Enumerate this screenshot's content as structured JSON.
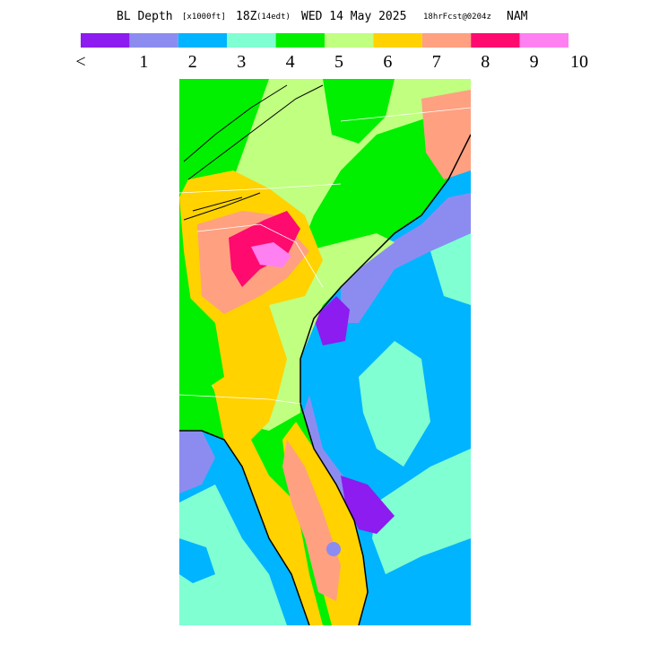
{
  "header": {
    "title": {
      "field": "BL Depth",
      "units": "[x1000ft]",
      "valid_time": "18Z",
      "local_time": "(14edt)",
      "date": "WED 14 May 2025",
      "forecast": "18hrFcst@0204z",
      "model": "NAM"
    }
  },
  "legend": {
    "colors": [
      "#8c1cf0",
      "#8c8cf0",
      "#00b4ff",
      "#80ffd2",
      "#00f000",
      "#c0ff80",
      "#ffd200",
      "#ffa080",
      "#ff0a6e",
      "#ff80f0"
    ],
    "labels": [
      "<",
      "1",
      "2",
      "3",
      "4",
      "5",
      "6",
      "7",
      "8",
      "9",
      "10"
    ]
  }
}
